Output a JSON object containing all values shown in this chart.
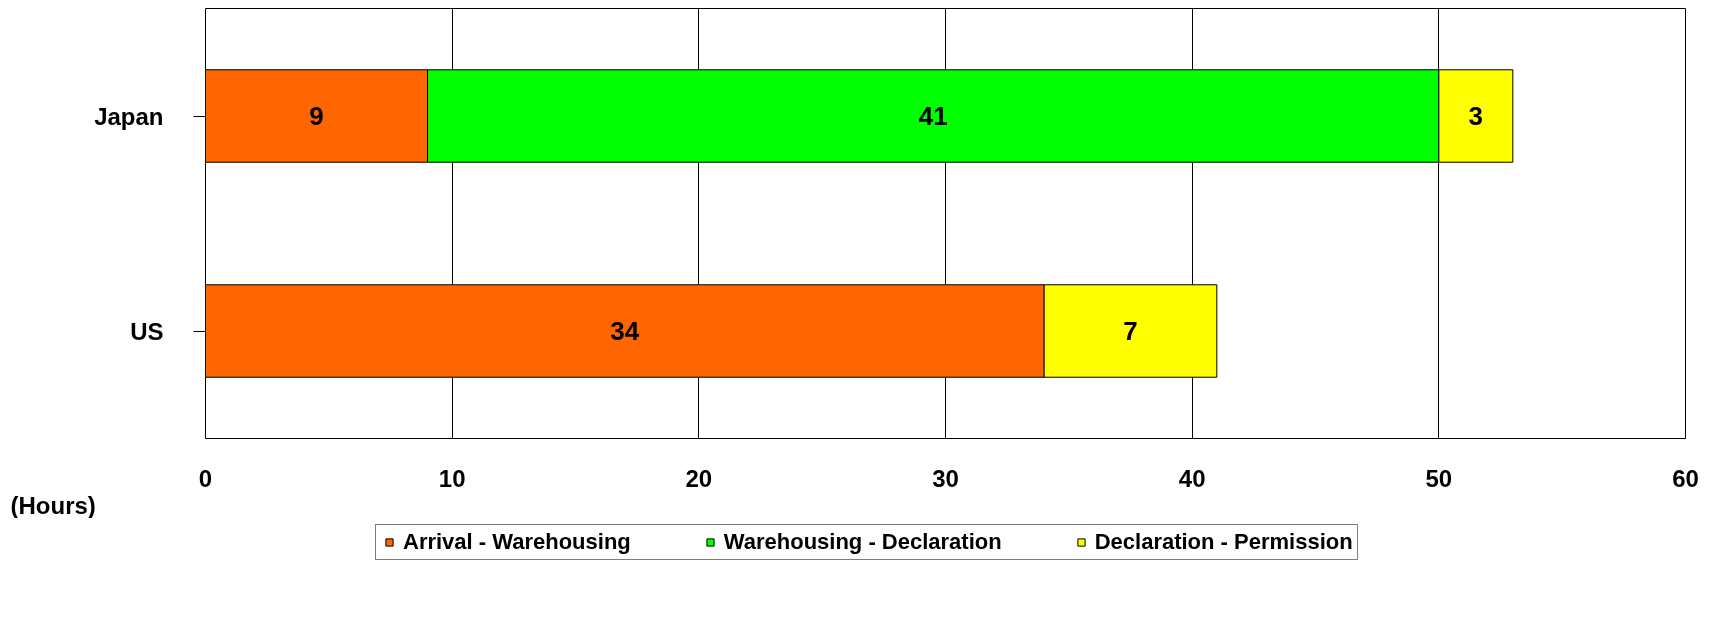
{
  "chart_data": {
    "type": "bar",
    "orientation": "horizontal",
    "stacked": true,
    "categories": [
      "Japan",
      "US"
    ],
    "series": [
      {
        "name": "Arrival - Warehousing",
        "color": "#ff6600",
        "values": [
          9,
          34
        ]
      },
      {
        "name": "Warehousing - Declaration",
        "color": "#00ff00",
        "values": [
          41,
          null
        ]
      },
      {
        "name": "Declaration - Permission",
        "color": "#ffff00",
        "values": [
          3,
          7
        ]
      }
    ],
    "xlabel": "(Hours)",
    "xlim": [
      0,
      60
    ],
    "xticks": [
      0,
      10,
      20,
      30,
      40,
      50,
      60
    ],
    "grid": "x",
    "legend": "bottom",
    "data_labels": true
  }
}
